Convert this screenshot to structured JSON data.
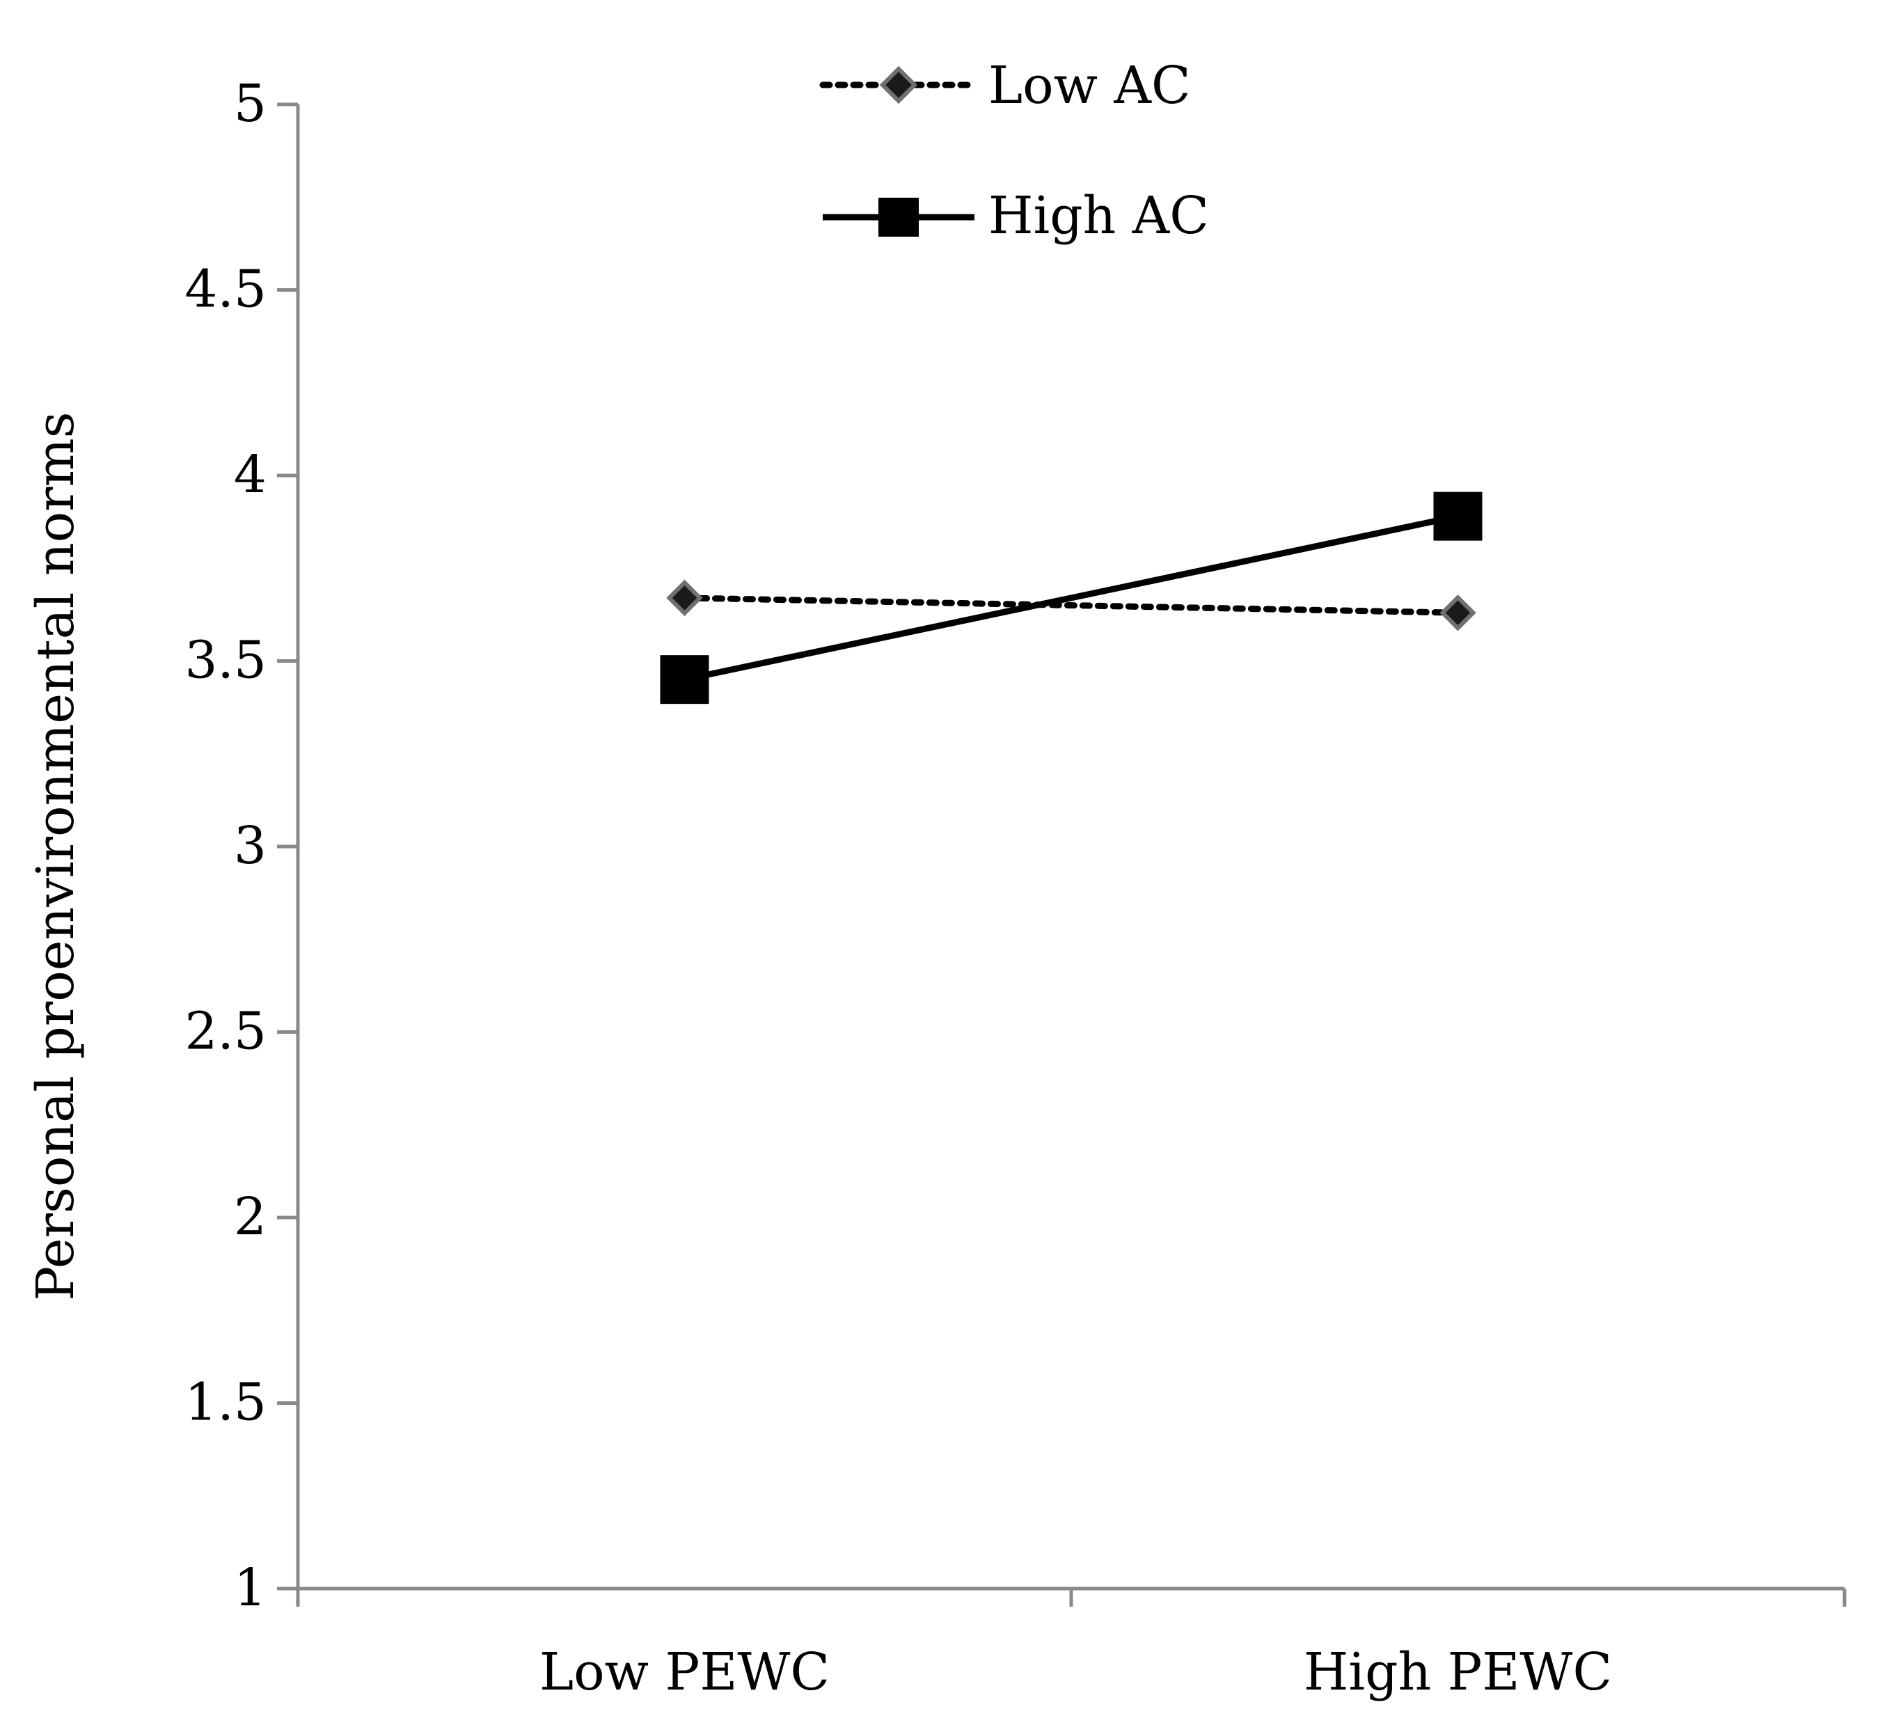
{
  "chart_data": {
    "type": "line",
    "title": "",
    "xlabel": "",
    "ylabel": "Personal proenvironmental norms",
    "categories": [
      "Low PEWC",
      "High PEWC"
    ],
    "ylim": [
      1,
      5
    ],
    "yticks": [
      "1",
      "1.5",
      "2",
      "2.5",
      "3",
      "3.5",
      "4",
      "4.5",
      "5"
    ],
    "legend_position": "top-center",
    "grid": false,
    "series": [
      {
        "name": "Low AC",
        "values": [
          3.67,
          3.63
        ],
        "line_style": "dotted",
        "marker": "diamond",
        "color": "#000000",
        "marker_color": "#1a1a1a",
        "marker_edge": "#707070"
      },
      {
        "name": "High AC",
        "values": [
          3.45,
          3.89
        ],
        "line_style": "solid",
        "marker": "square",
        "color": "#000000",
        "marker_color": "#000000",
        "marker_edge": "#000000"
      }
    ],
    "axis_color": "#898989"
  }
}
